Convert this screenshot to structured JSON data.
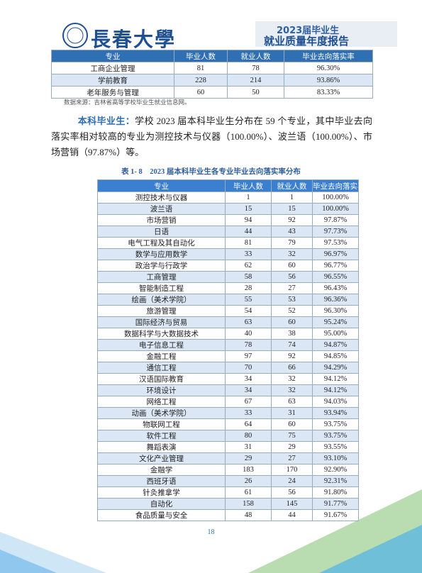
{
  "header": {
    "school": "長春大學",
    "banner_top": "2023届毕业生",
    "banner_bottom": "就业质量年度报告"
  },
  "top_table": {
    "columns": [
      "专业",
      "毕业人数",
      "就业人数",
      "毕业去向落实率"
    ],
    "rows": [
      [
        "工商企业管理",
        "81",
        "78",
        "96.30%"
      ],
      [
        "学前教育",
        "228",
        "214",
        "93.86%"
      ],
      [
        "老年服务与管理",
        "60",
        "50",
        "83.33%"
      ]
    ]
  },
  "source_note": "数据来源：吉林省高等学校毕业生就业信息网。",
  "paragraph": {
    "label": "本科毕业生：",
    "text": "学校 2023 届本科毕业生分布在 59 个专业，其中毕业去向落实率相对较高的专业为测控技术与仪器（100.00%）、波兰语（100.00%）、市场营销（97.87%）等。"
  },
  "caption": "表 1- 8　2023 届本科毕业生各专业毕业去向落实率分布",
  "main_table": {
    "columns": [
      "专业",
      "毕业人数",
      "就业人数",
      "毕业去向落实率"
    ],
    "rows": [
      [
        "测控技术与仪器",
        "1",
        "1",
        "100.00%"
      ],
      [
        "波兰语",
        "15",
        "15",
        "100.00%"
      ],
      [
        "市场营销",
        "94",
        "92",
        "97.87%"
      ],
      [
        "日语",
        "44",
        "43",
        "97.73%"
      ],
      [
        "电气工程及其自动化",
        "81",
        "79",
        "97.53%"
      ],
      [
        "数学与应用数学",
        "33",
        "32",
        "96.97%"
      ],
      [
        "政治学与行政学",
        "62",
        "60",
        "96.77%"
      ],
      [
        "工商管理",
        "58",
        "56",
        "96.55%"
      ],
      [
        "智能制造工程",
        "28",
        "27",
        "96.43%"
      ],
      [
        "绘画（美术学院）",
        "55",
        "53",
        "96.36%"
      ],
      [
        "旅游管理",
        "54",
        "52",
        "96.30%"
      ],
      [
        "国际经济与贸易",
        "63",
        "60",
        "95.24%"
      ],
      [
        "数据科学与大数据技术",
        "40",
        "38",
        "95.00%"
      ],
      [
        "电子信息工程",
        "78",
        "74",
        "94.87%"
      ],
      [
        "金融工程",
        "97",
        "92",
        "94.85%"
      ],
      [
        "通信工程",
        "70",
        "66",
        "94.29%"
      ],
      [
        "汉语国际教育",
        "34",
        "32",
        "94.12%"
      ],
      [
        "环境设计",
        "34",
        "32",
        "94.12%"
      ],
      [
        "网络工程",
        "67",
        "63",
        "94.03%"
      ],
      [
        "动画（美术学院）",
        "33",
        "31",
        "93.94%"
      ],
      [
        "物联网工程",
        "64",
        "60",
        "93.75%"
      ],
      [
        "软件工程",
        "80",
        "75",
        "93.75%"
      ],
      [
        "舞蹈表演",
        "31",
        "29",
        "93.55%"
      ],
      [
        "文化产业管理",
        "29",
        "27",
        "93.10%"
      ],
      [
        "金融学",
        "183",
        "170",
        "92.90%"
      ],
      [
        "西班牙语",
        "26",
        "24",
        "92.31%"
      ],
      [
        "针灸推拿学",
        "61",
        "56",
        "91.80%"
      ],
      [
        "自动化",
        "158",
        "145",
        "91.77%"
      ],
      [
        "食品质量与安全",
        "48",
        "44",
        "91.67%"
      ]
    ]
  },
  "page_number": "18"
}
